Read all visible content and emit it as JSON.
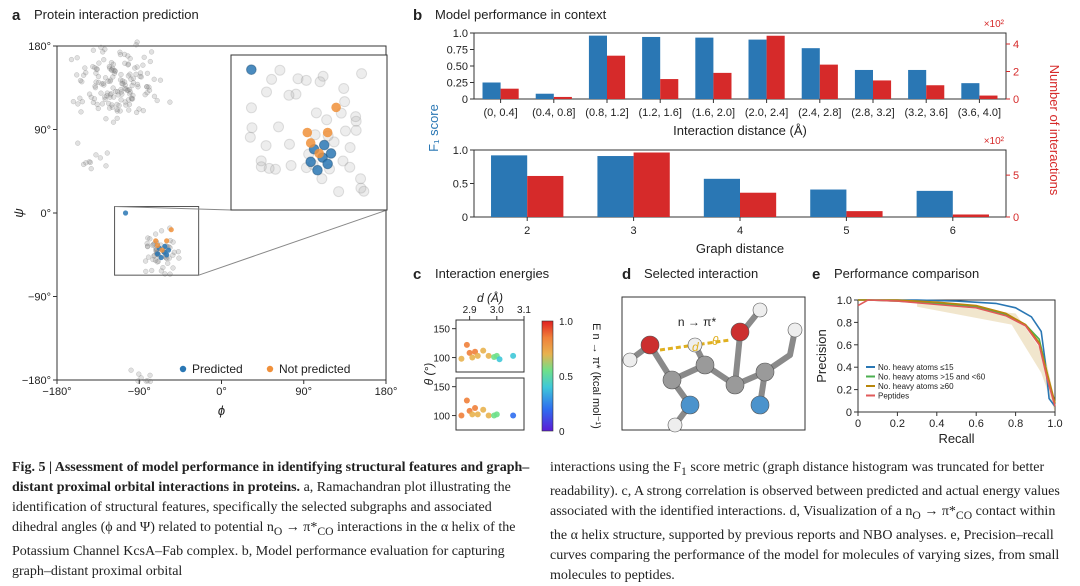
{
  "panels": {
    "a": {
      "letter": "a",
      "title": "Protein interaction prediction"
    },
    "b": {
      "letter": "b",
      "title": "Model performance in context"
    },
    "c": {
      "letter": "c",
      "title": "Interaction energies"
    },
    "d": {
      "letter": "d",
      "title": "Selected interaction",
      "label": "n → π*",
      "dist_label": "d",
      "angle_label": "θ"
    },
    "e": {
      "letter": "e",
      "title": "Performance comparison"
    }
  },
  "colors": {
    "blue": "#2a77b4",
    "orange": "#f0903a",
    "red": "#d62a2a",
    "gray": "#9a9a9a"
  },
  "caption": {
    "lead": "Fig. 5 | Assessment of model performance in identifying structural features and graph–distant proximal orbital interactions in proteins.",
    "left_body": " a, Ramachandran plot illustrating the identification of structural features, specifically the selected subgraphs and associated dihedral angles (ϕ and Ψ) related to potential n",
    "left_sub1": "O",
    "left_mid": " → π*",
    "left_sub2": "CO",
    "left_end": " interactions in the α helix of the Potassium Channel KcsA–Fab complex. b, Model performance evaluation for capturing graph–distant proximal orbital",
    "right_1": "interactions using the F",
    "right_sub1": "1",
    "right_2": " score metric (graph distance histogram was truncated for better readability). c, A strong correlation is observed between predicted and actual energy values associated with the identified interactions. d, Visualization of a n",
    "right_sub2": "O",
    "right_3": " → π*",
    "right_sub3": "CO",
    "right_4": " contact within the α helix structure, supported by previous reports and NBO analyses. e, Precision–recall curves comparing the performance of the model for molecules of varying sizes, from small molecules to peptides."
  },
  "chart_data": [
    {
      "id": "a",
      "type": "scatter",
      "xlabel": "ϕ",
      "ylabel": "ψ",
      "xlim": [
        -180,
        180
      ],
      "ylim": [
        -180,
        180
      ],
      "xticks": [
        "−180°",
        "−90°",
        "0°",
        "90°",
        "180°"
      ],
      "yticks": [
        "180°",
        "90°",
        "0°",
        "−90°",
        "−180°"
      ],
      "legend": [
        "Predicted",
        "Not predicted"
      ],
      "legend_position": "bottom-right",
      "series": [
        {
          "name": "Predicted",
          "color": "#2a77b4",
          "points": [
            [
              -105,
              0
            ],
            [
              -68,
              -38
            ],
            [
              -63,
              -42
            ],
            [
              -66,
              -48
            ],
            [
              -60,
              -45
            ],
            [
              -62,
              -36
            ],
            [
              -70,
              -44
            ],
            [
              -58,
              -40
            ]
          ]
        },
        {
          "name": "Not predicted",
          "color": "#f0903a",
          "points": [
            [
              -70,
              -35
            ],
            [
              -65,
              -40
            ],
            [
              -72,
              -30
            ],
            [
              -60,
              -30
            ],
            [
              -55,
              -18
            ]
          ]
        }
      ]
    },
    {
      "id": "b-top",
      "type": "bar",
      "xlabel": "Interaction distance (Å)",
      "ylabel": "F1 score",
      "ylabel_right": "Number of interactions",
      "right_axis_multiplier": "×10²",
      "ylim": [
        0,
        1.0
      ],
      "ylim_right": [
        0,
        4.8
      ],
      "yticks": [
        "0",
        "0.5",
        "1.0"
      ],
      "yticks_step": [
        "0",
        "0.25",
        "0.50",
        "0.75",
        "1.0"
      ],
      "yticks_right": [
        "0",
        "2",
        "4"
      ],
      "categories": [
        "(0, 0.4]",
        "(0.4, 0.8]",
        "(0.8, 1.2]",
        "(1.2, 1.6]",
        "(1.6, 2.0]",
        "(2.0, 2.4]",
        "(2.4, 2.8]",
        "(2.8, 3.2]",
        "(3.2, 3.6]",
        "(3.6, 4.0]"
      ],
      "series": [
        {
          "name": "F1 score",
          "color": "#2a77b4",
          "values": [
            0.25,
            0.08,
            0.96,
            0.94,
            0.93,
            0.9,
            0.77,
            0.44,
            0.44,
            0.24
          ]
        },
        {
          "name": "Number of interactions",
          "color": "#d62a2a",
          "values": [
            0.75,
            0.15,
            3.15,
            1.45,
            1.9,
            4.6,
            2.5,
            1.35,
            1.0,
            0.25
          ]
        }
      ]
    },
    {
      "id": "b-bottom",
      "type": "bar",
      "xlabel": "Graph distance",
      "ylabel": "F1 score",
      "ylabel_right": "Number of interactions",
      "right_axis_multiplier": "×10²",
      "ylim": [
        0,
        1.0
      ],
      "ylim_right": [
        0,
        8.0
      ],
      "yticks": [
        "0",
        "0.5",
        "1.0"
      ],
      "yticks_right": [
        "0",
        "5"
      ],
      "categories": [
        "2",
        "3",
        "4",
        "5",
        "6"
      ],
      "series": [
        {
          "name": "F1 score",
          "color": "#2a77b4",
          "values": [
            0.92,
            0.91,
            0.57,
            0.41,
            0.39
          ]
        },
        {
          "name": "Number of interactions",
          "color": "#d62a2a",
          "values": [
            4.9,
            7.7,
            2.9,
            0.7,
            0.3
          ]
        }
      ]
    },
    {
      "id": "c",
      "type": "scatter",
      "xlabel": "d (Å)",
      "ylabel": "θ (°)",
      "xlim": [
        2.85,
        3.1
      ],
      "xticks": [
        "2.9",
        "3.0",
        "3.1"
      ],
      "yticks": [
        "150",
        "100"
      ],
      "colorbar_label": "E n → π* (kcal mol⁻¹)",
      "colorbar_ticks": [
        "1.0",
        "0.5",
        "0"
      ],
      "rows": [
        {
          "points": [
            [
              2.87,
              98,
              0.7
            ],
            [
              2.89,
              122,
              0.75
            ],
            [
              2.9,
              108,
              0.72
            ],
            [
              2.91,
              100,
              0.7
            ],
            [
              2.92,
              110,
              0.72
            ],
            [
              2.93,
              103,
              0.7
            ],
            [
              2.95,
              112,
              0.68
            ],
            [
              2.97,
              103,
              0.6
            ],
            [
              2.99,
              101,
              0.5
            ],
            [
              3.0,
              103,
              0.45
            ],
            [
              3.01,
              97,
              0.4
            ],
            [
              3.06,
              103,
              0.35
            ]
          ]
        },
        {
          "points": [
            [
              2.87,
              100,
              0.72
            ],
            [
              2.89,
              126,
              0.75
            ],
            [
              2.9,
              108,
              0.73
            ],
            [
              2.91,
              102,
              0.7
            ],
            [
              2.92,
              113,
              0.72
            ],
            [
              2.93,
              102,
              0.68
            ],
            [
              2.95,
              110,
              0.68
            ],
            [
              2.97,
              100,
              0.6
            ],
            [
              2.99,
              100,
              0.55
            ],
            [
              3.0,
              102,
              0.45
            ],
            [
              3.06,
              100,
              0.05
            ]
          ]
        }
      ]
    },
    {
      "id": "e",
      "type": "line",
      "xlabel": "Recall",
      "ylabel": "Precision",
      "xlim": [
        0,
        1.0
      ],
      "ylim": [
        0,
        1.0
      ],
      "xticks": [
        "0",
        "0.2",
        "0.4",
        "0.6",
        "0.8",
        "1.0"
      ],
      "yticks": [
        "0",
        "0.2",
        "0.4",
        "0.6",
        "0.8",
        "1.0"
      ],
      "legend_position": "bottom-left",
      "series": [
        {
          "name": "No. heavy atoms ≤15",
          "color": "#2a77b4",
          "points": [
            [
              0,
              1.0
            ],
            [
              0.3,
              1.0
            ],
            [
              0.5,
              0.99
            ],
            [
              0.7,
              0.97
            ],
            [
              0.8,
              0.93
            ],
            [
              0.88,
              0.85
            ],
            [
              0.93,
              0.72
            ],
            [
              0.95,
              0.45
            ],
            [
              0.97,
              0.12
            ],
            [
              1.0,
              0.05
            ]
          ]
        },
        {
          "name": "No. heavy atoms >15 and <60",
          "color": "#4caf50",
          "points": [
            [
              0,
              1.0
            ],
            [
              0.05,
              1.0
            ],
            [
              0.2,
              0.99
            ],
            [
              0.4,
              0.97
            ],
            [
              0.6,
              0.94
            ],
            [
              0.75,
              0.87
            ],
            [
              0.85,
              0.78
            ],
            [
              0.92,
              0.65
            ],
            [
              0.96,
              0.35
            ],
            [
              1.0,
              0.05
            ]
          ]
        },
        {
          "name": "No. heavy atoms ≥60",
          "color": "#b8860b",
          "points": [
            [
              0,
              1.0
            ],
            [
              0.2,
              1.0
            ],
            [
              0.4,
              0.98
            ],
            [
              0.6,
              0.95
            ],
            [
              0.75,
              0.88
            ],
            [
              0.85,
              0.78
            ],
            [
              0.92,
              0.62
            ],
            [
              0.96,
              0.35
            ],
            [
              1.0,
              0.08
            ]
          ]
        },
        {
          "name": "Peptides",
          "color": "#e05a5a",
          "points": [
            [
              0,
              0.95
            ],
            [
              0.05,
              1.0
            ],
            [
              0.2,
              0.99
            ],
            [
              0.4,
              0.96
            ],
            [
              0.6,
              0.93
            ],
            [
              0.75,
              0.86
            ],
            [
              0.85,
              0.77
            ],
            [
              0.92,
              0.6
            ],
            [
              0.96,
              0.3
            ],
            [
              1.0,
              0.05
            ]
          ]
        }
      ]
    }
  ]
}
